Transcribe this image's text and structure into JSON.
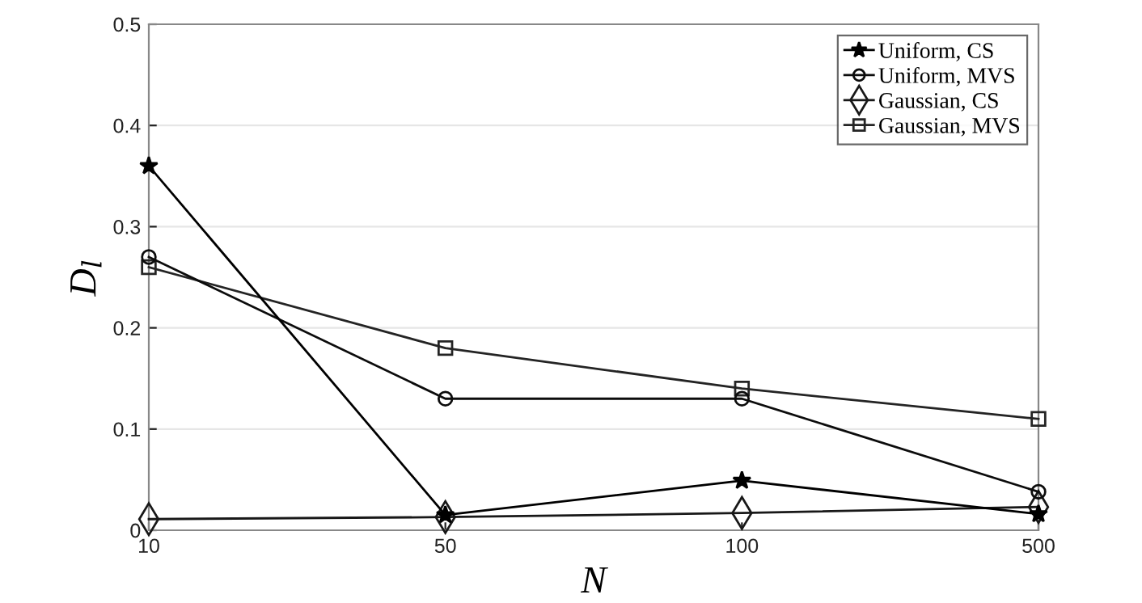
{
  "chart_data": {
    "type": "line",
    "xlabel": "N",
    "ylabel": "D$_{l}$",
    "categories": [
      "10",
      "50",
      "100",
      "500"
    ],
    "series": [
      {
        "name": "Uniform, CS",
        "color": "#000000",
        "marker": "star",
        "values": [
          0.36,
          0.015,
          0.049,
          0.016
        ]
      },
      {
        "name": "Uniform, MVS",
        "color": "#0c0c0c",
        "marker": "circle",
        "values": [
          0.27,
          0.13,
          0.13,
          0.038
        ]
      },
      {
        "name": "Gaussian, CS",
        "color": "#181818",
        "marker": "diamond",
        "values": [
          0.011,
          0.013,
          0.017,
          0.023
        ]
      },
      {
        "name": "Gaussian, MVS",
        "color": "#242424",
        "marker": "square",
        "values": [
          0.26,
          0.18,
          0.14,
          0.11
        ]
      }
    ],
    "ylim": [
      0,
      0.5
    ],
    "yticks": [
      0,
      0.1,
      0.2,
      0.3,
      0.4,
      0.5
    ],
    "grid": "y",
    "legend": "top right",
    "line_style": "solid"
  }
}
